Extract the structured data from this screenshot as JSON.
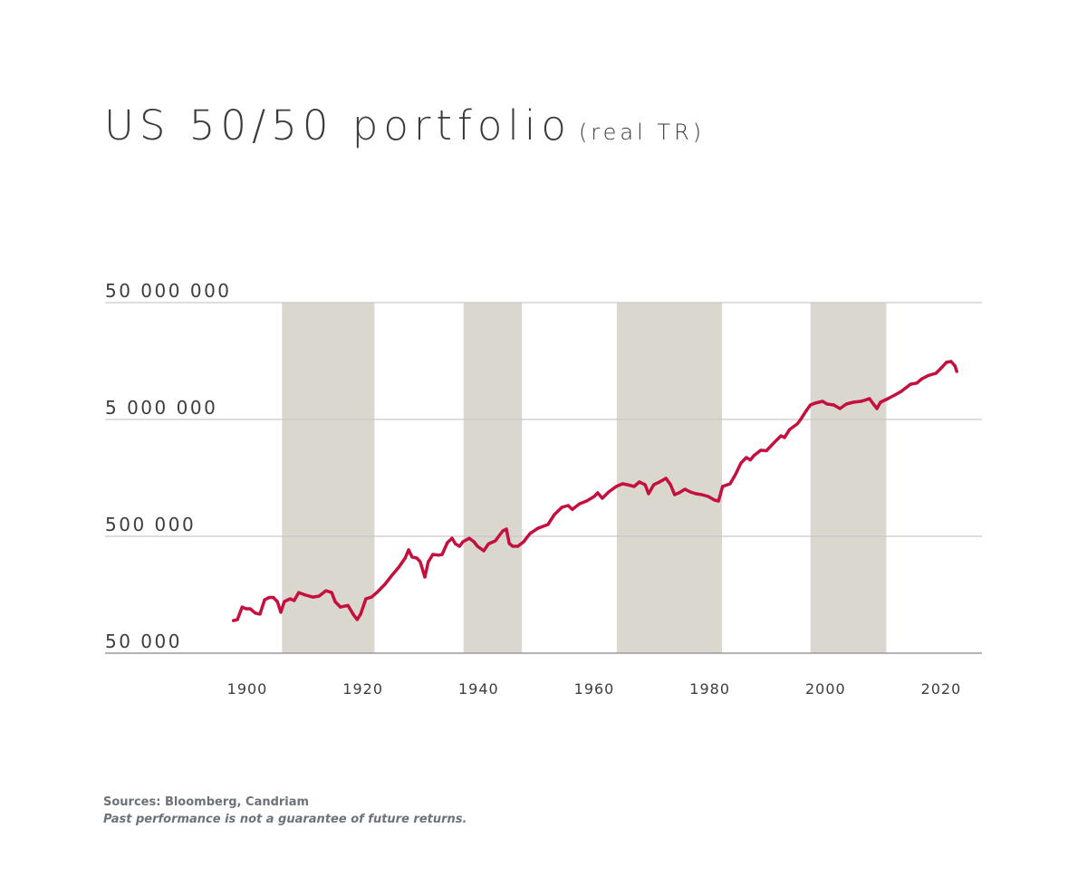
{
  "chart_data": {
    "type": "line",
    "title": "US 50/50 portfolio",
    "subtitle": "(real TR)",
    "xlabel": "",
    "ylabel": "",
    "yscale": "log",
    "ylim": [
      50000,
      50000000
    ],
    "xlim": [
      1897,
      2023
    ],
    "y_ticks": [
      50000,
      500000,
      5000000,
      50000000
    ],
    "y_tick_labels": [
      "50 000",
      "500 000",
      "5 000 000",
      "50 000 000"
    ],
    "x_ticks": [
      1900,
      1920,
      1940,
      1960,
      1980,
      2000,
      2020
    ],
    "x_tick_labels": [
      "1900",
      "1920",
      "1940",
      "1960",
      "1980",
      "2000",
      "2020"
    ],
    "grid": "horizontal",
    "shaded_periods": [
      [
        1906,
        1922
      ],
      [
        1937.4,
        1947.5
      ],
      [
        1963.9,
        1982.1
      ],
      [
        1997.4,
        2010.5
      ]
    ],
    "colors": {
      "line": "#c40f3f",
      "band": "#dad7cf",
      "grid": "#c9c9c9",
      "axis": "#9a9a9a"
    },
    "series": [
      {
        "x": [
          1897.6,
          1898.3,
          1899.1,
          1899.8,
          1900.5,
          1901.4,
          1902.2,
          1903.0,
          1903.8,
          1904.5,
          1905.2,
          1905.8,
          1906.4,
          1907.4,
          1908.1,
          1908.9,
          1909.9,
          1911.3,
          1912.4,
          1913.6,
          1914.6,
          1915.2,
          1916.1,
          1917.4,
          1918.3,
          1919.0,
          1919.6,
          1920.5,
          1921.5,
          1922.4,
          1923.8,
          1924.9,
          1926.2,
          1927.3,
          1927.9,
          1928.5,
          1929.3,
          1929.9,
          1930.7,
          1931.3,
          1932.1,
          1933.1,
          1933.7,
          1934.6,
          1935.4,
          1936.0,
          1936.7,
          1937.3,
          1938.4,
          1939.2,
          1939.8,
          1940.9,
          1941.7,
          1942.9,
          1944.2,
          1944.8,
          1945.3,
          1945.9,
          1946.8,
          1947.8,
          1948.9,
          1950.3,
          1952.0,
          1953.1,
          1954.4,
          1955.5,
          1956.2,
          1957.5,
          1958.7,
          1960.0,
          1960.6,
          1961.4,
          1962.5,
          1963.8,
          1964.9,
          1965.8,
          1966.9,
          1967.8,
          1968.8,
          1969.4,
          1970.3,
          1971.3,
          1972.4,
          1973.2,
          1973.9,
          1974.7,
          1975.7,
          1976.6,
          1977.6,
          1978.6,
          1979.7,
          1980.8,
          1981.5,
          1982.2,
          1983.5,
          1984.4,
          1985.4,
          1986.3,
          1987.0,
          1987.6,
          1988.8,
          1989.8,
          1990.9,
          1992.3,
          1992.9,
          1993.8,
          1995.1,
          1995.7,
          1996.7,
          1997.4,
          1998.2,
          1999.5,
          2000.3,
          2001.4,
          2002.5,
          2003.6,
          2004.8,
          2006.1,
          2006.8,
          2007.6,
          2008.4,
          2008.9,
          2009.5,
          2010.8,
          2012.0,
          2013.1,
          2014.7,
          2015.8,
          2016.7,
          2017.8,
          2019.1,
          2020.2,
          2020.9,
          2021.7,
          2022.4,
          2022.7
        ],
        "y": [
          95000,
          97000,
          124000,
          120000,
          120000,
          110000,
          108000,
          143000,
          150000,
          150000,
          138000,
          112000,
          138000,
          146000,
          141000,
          165000,
          158000,
          151000,
          154000,
          171000,
          165000,
          138000,
          124000,
          128000,
          108000,
          97000,
          108000,
          146000,
          151000,
          165000,
          194000,
          228000,
          272000,
          326000,
          383000,
          332000,
          326000,
          303000,
          224000,
          303000,
          350000,
          345000,
          350000,
          441000,
          482000,
          430000,
          411000,
          449000,
          482000,
          449000,
          411000,
          376000,
          430000,
          457000,
          557000,
          577000,
          434000,
          411000,
          411000,
          449000,
          528000,
          587000,
          631000,
          767000,
          885000,
          918000,
          850000,
          951000,
          1003000,
          1097000,
          1178000,
          1059000,
          1199000,
          1335000,
          1409000,
          1380000,
          1335000,
          1460000,
          1380000,
          1157000,
          1380000,
          1460000,
          1567000,
          1380000,
          1137000,
          1180000,
          1265000,
          1200000,
          1157000,
          1137000,
          1097000,
          1021000,
          1003000,
          1335000,
          1409000,
          1683000,
          2124000,
          2361000,
          2250000,
          2450000,
          2723000,
          2700000,
          3090000,
          3627000,
          3500000,
          4110000,
          4573000,
          5000000,
          5981000,
          6655000,
          6900000,
          7144000,
          6775000,
          6655000,
          6196000,
          6775000,
          7013000,
          7144000,
          7300000,
          7537000,
          6655000,
          6196000,
          7013000,
          7537000,
          8093000,
          8690000,
          10020000,
          10240000,
          11160000,
          11900000,
          12420000,
          14090000,
          15380000,
          15670000,
          14330000,
          12880000
        ]
      }
    ]
  },
  "footer": {
    "sources": "Sources: Bloomberg, Candriam",
    "disclaimer": "Past performance is not a guarantee of future returns."
  }
}
